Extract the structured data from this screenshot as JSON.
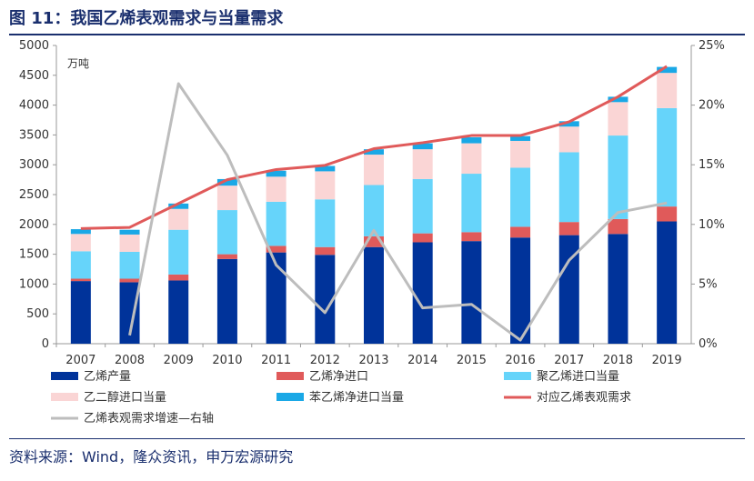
{
  "header": {
    "title": "图 11：我国乙烯表观需求与当量需求"
  },
  "footer": {
    "source": "资料来源：Wind，隆众资讯，申万宏源研究"
  },
  "chart_data": {
    "type": "bar",
    "stacked": true,
    "title": "图 11：我国乙烯表观需求与当量需求",
    "unit_label": "万吨",
    "categories": [
      "2007",
      "2008",
      "2009",
      "2010",
      "2011",
      "2012",
      "2013",
      "2014",
      "2015",
      "2016",
      "2017",
      "2018",
      "2019"
    ],
    "ylim": [
      0,
      5000
    ],
    "yticks": [
      0,
      500,
      1000,
      1500,
      2000,
      2500,
      3000,
      3500,
      4000,
      4500,
      5000
    ],
    "y2lim": [
      0,
      25
    ],
    "y2ticks": [
      "0%",
      "5%",
      "10%",
      "15%",
      "20%",
      "25%"
    ],
    "series": [
      {
        "name": "乙烯产量",
        "kind": "bar",
        "color": "#00339a",
        "values": [
          1050,
          1030,
          1060,
          1420,
          1530,
          1490,
          1620,
          1700,
          1720,
          1780,
          1820,
          1840,
          2050
        ]
      },
      {
        "name": "乙烯净进口",
        "kind": "bar",
        "color": "#e05a5a",
        "values": [
          40,
          60,
          100,
          80,
          110,
          130,
          180,
          150,
          150,
          180,
          220,
          250,
          250
        ]
      },
      {
        "name": "聚乙烯进口当量",
        "kind": "bar",
        "color": "#66d4fa",
        "values": [
          460,
          450,
          750,
          740,
          740,
          800,
          860,
          910,
          980,
          990,
          1170,
          1400,
          1650
        ]
      },
      {
        "name": "乙二醇进口当量",
        "kind": "bar",
        "color": "#fad5d5",
        "values": [
          290,
          290,
          350,
          410,
          420,
          470,
          510,
          500,
          510,
          450,
          430,
          560,
          590
        ]
      },
      {
        "name": "苯乙烯净进口当量",
        "kind": "bar",
        "color": "#1aa8e6",
        "values": [
          80,
          80,
          90,
          110,
          100,
          90,
          90,
          100,
          100,
          80,
          90,
          90,
          100
        ]
      },
      {
        "name": "对应乙烯表观需求",
        "kind": "line",
        "axis": "left",
        "color": "#e05a5a",
        "values": [
          1930,
          1950,
          2350,
          2750,
          2920,
          2990,
          3270,
          3370,
          3490,
          3490,
          3720,
          4140,
          4650
        ]
      },
      {
        "name": "乙烯表观需求增速—右轴",
        "kind": "line",
        "axis": "right",
        "color": "#bdbdbd",
        "values": [
          null,
          0.7,
          21.8,
          15.8,
          6.6,
          2.6,
          9.5,
          3.0,
          3.3,
          0.3,
          7.0,
          11.0,
          11.8
        ]
      }
    ],
    "legend_position": "bottom"
  }
}
